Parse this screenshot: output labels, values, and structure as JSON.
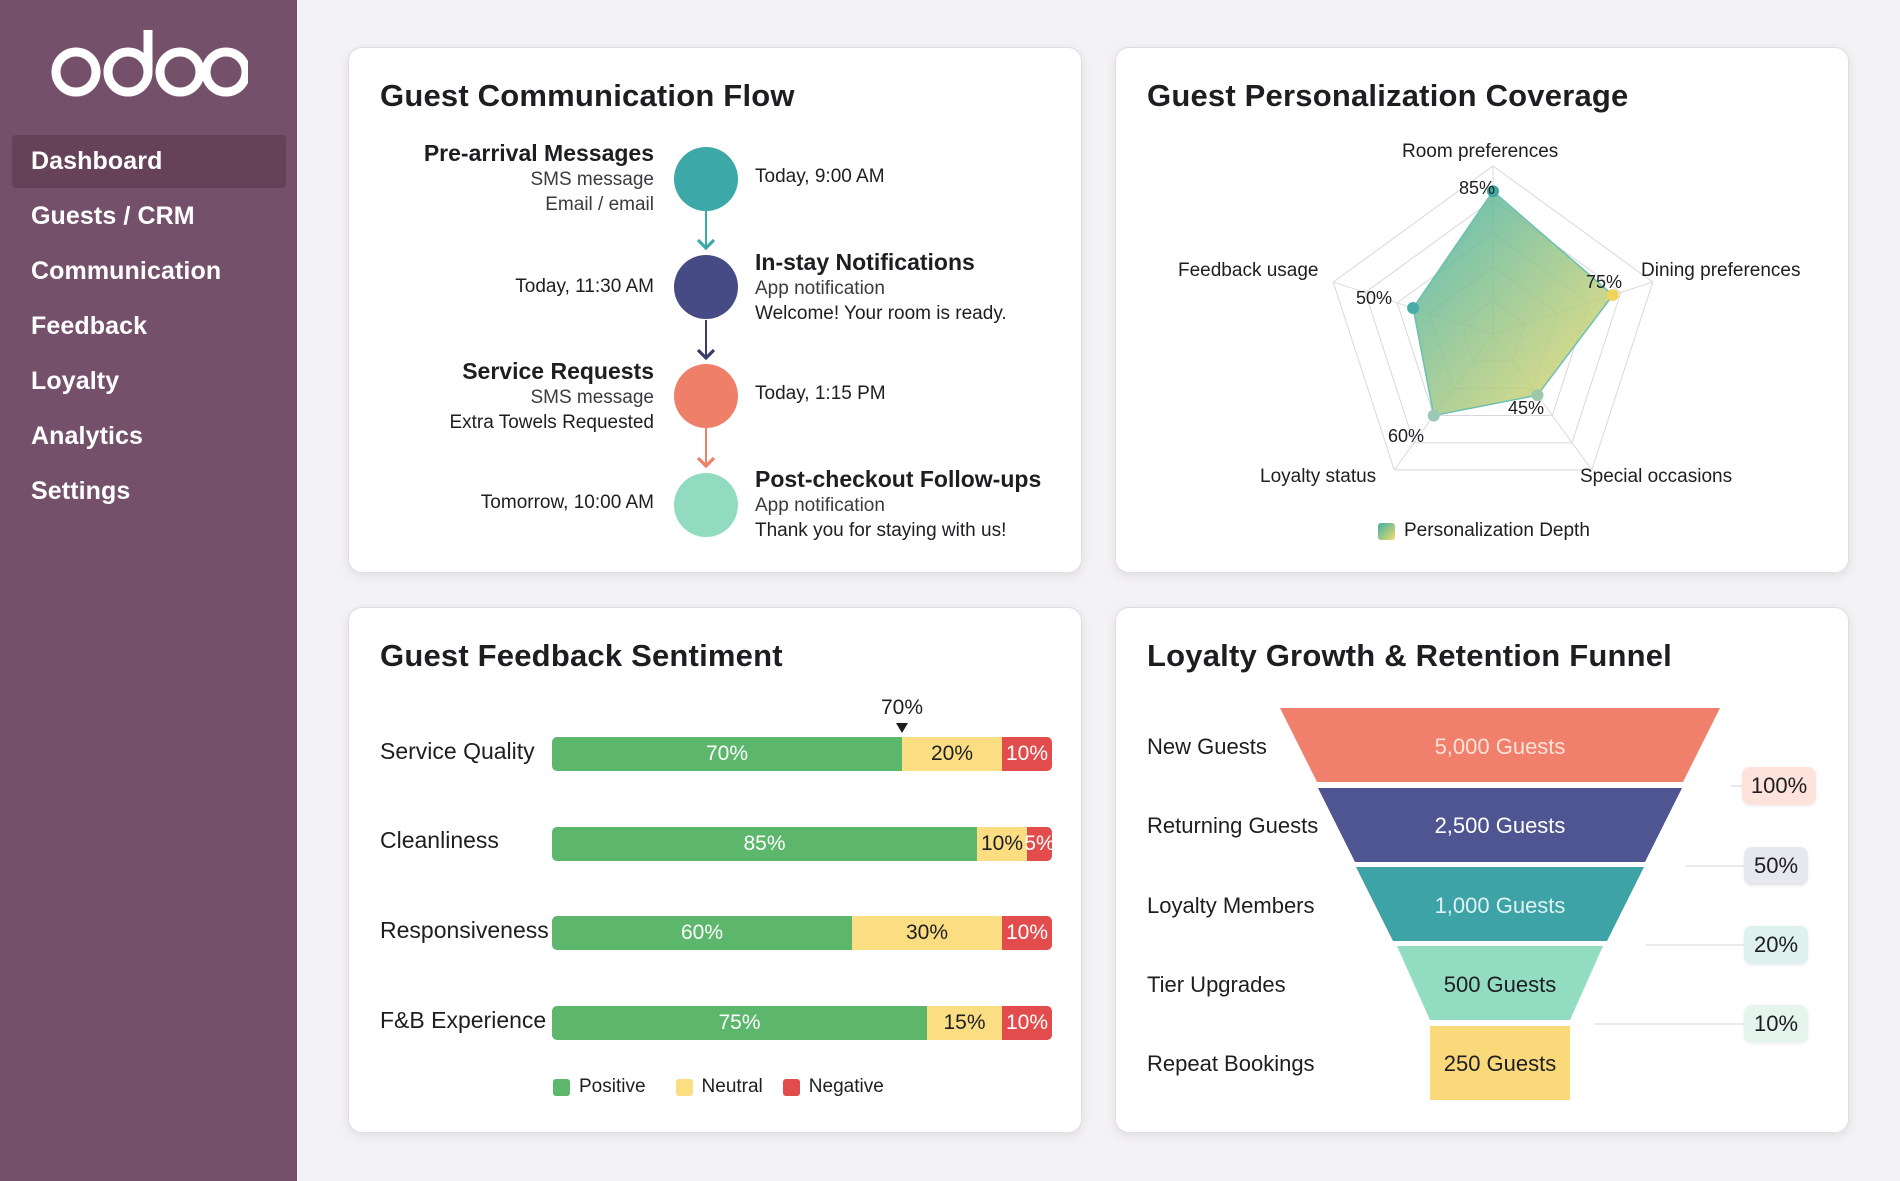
{
  "app": {
    "logo_text": "odoo",
    "brand_color": "#74506a"
  },
  "sidebar": {
    "items": [
      {
        "label": "Dashboard",
        "active": true
      },
      {
        "label": "Guests / CRM"
      },
      {
        "label": "Communication"
      },
      {
        "label": "Feedback"
      },
      {
        "label": "Loyalty"
      },
      {
        "label": "Analytics"
      },
      {
        "label": "Settings"
      }
    ]
  },
  "communication": {
    "title": "Guest Communication Flow",
    "steps": [
      {
        "title": "Pre-arrival Messages",
        "lines": [
          "SMS message",
          "Email / email"
        ],
        "time": "Today, 9:00 AM",
        "color": "#3da8a8"
      },
      {
        "title": "In-stay Notifications",
        "lines": [
          "App notification",
          "Welcome! Your room is ready."
        ],
        "time": "Today, 11:30 AM",
        "color": "#464b86"
      },
      {
        "title": "Service Requests",
        "lines": [
          "SMS message",
          "Extra Towels Requested"
        ],
        "time": "Today, 1:15 PM",
        "color": "#f07f6a"
      },
      {
        "title": "Post-checkout Follow-ups",
        "lines": [
          "App notification",
          "Thank you for staying with us!"
        ],
        "time": "Tomorrow, 10:00 AM",
        "color": "#91dcc1"
      }
    ]
  },
  "personalization": {
    "title": "Guest Personalization Coverage",
    "chart_data": {
      "type": "radar",
      "categories": [
        "Room preferences",
        "Dining preferences",
        "Special occasions",
        "Loyalty status",
        "Feedback usage"
      ],
      "series": [
        {
          "name": "Personalization Depth",
          "values": [
            85,
            75,
            45,
            60,
            50
          ]
        }
      ],
      "value_labels": [
        "85%",
        "75%",
        "45%",
        "60%",
        "50%"
      ],
      "max": 100,
      "legend": "bottom",
      "colors": [
        "#3fb0a8",
        "#f2dc6a"
      ]
    }
  },
  "sentiment": {
    "title": "Guest Feedback Sentiment",
    "marker_label": "70%",
    "marker_value": 70,
    "chart_data": {
      "type": "stacked-bar",
      "categories": [
        "Service Quality",
        "Cleanliness",
        "Responsiveness",
        "F&B Experience"
      ],
      "series": [
        {
          "name": "Positive",
          "values": [
            70,
            85,
            60,
            75
          ],
          "labels": [
            "70%",
            "85%",
            "60%",
            "75%"
          ],
          "color": "#5cb66c"
        },
        {
          "name": "Neutral",
          "values": [
            20,
            10,
            30,
            15
          ],
          "labels": [
            "20%",
            "10%",
            "30%",
            "15%"
          ],
          "color": "#fbde82"
        },
        {
          "name": "Negative",
          "values": [
            10,
            5,
            10,
            10
          ],
          "labels": [
            "10%",
            "5%",
            "10%",
            "10%"
          ],
          "color": "#e24c4c"
        }
      ],
      "legend": "bottom"
    }
  },
  "funnel": {
    "title": "Loyalty Growth & Retention Funnel",
    "chart_data": {
      "type": "funnel",
      "stages": [
        {
          "name": "New Guests",
          "label": "5,000 Guests",
          "value": 5000,
          "color": "#f0806b",
          "text_color": "#ffe2d8"
        },
        {
          "name": "Returning Guests",
          "label": "2,500 Guests",
          "value": 2500,
          "color": "#4f5590",
          "text_color": "#ffffff"
        },
        {
          "name": "Loyalty Members",
          "label": "1,000 Guests",
          "value": 1000,
          "color": "#3ea3a7",
          "text_color": "#dff3f3"
        },
        {
          "name": "Tier Upgrades",
          "label": "500 Guests",
          "value": 500,
          "color": "#92dcc2",
          "text_color": "#1e1e22"
        },
        {
          "name": "Repeat Bookings",
          "label": "250 Guests",
          "value": 250,
          "color": "#fad97a",
          "text_color": "#1e1e22"
        }
      ],
      "percentages": [
        {
          "label": "100%",
          "color": "#fde3dc"
        },
        {
          "label": "50%",
          "color": "#e7e7ef"
        },
        {
          "label": "20%",
          "color": "#def1ee"
        },
        {
          "label": "10%",
          "color": "#e5f4ec"
        }
      ]
    }
  }
}
